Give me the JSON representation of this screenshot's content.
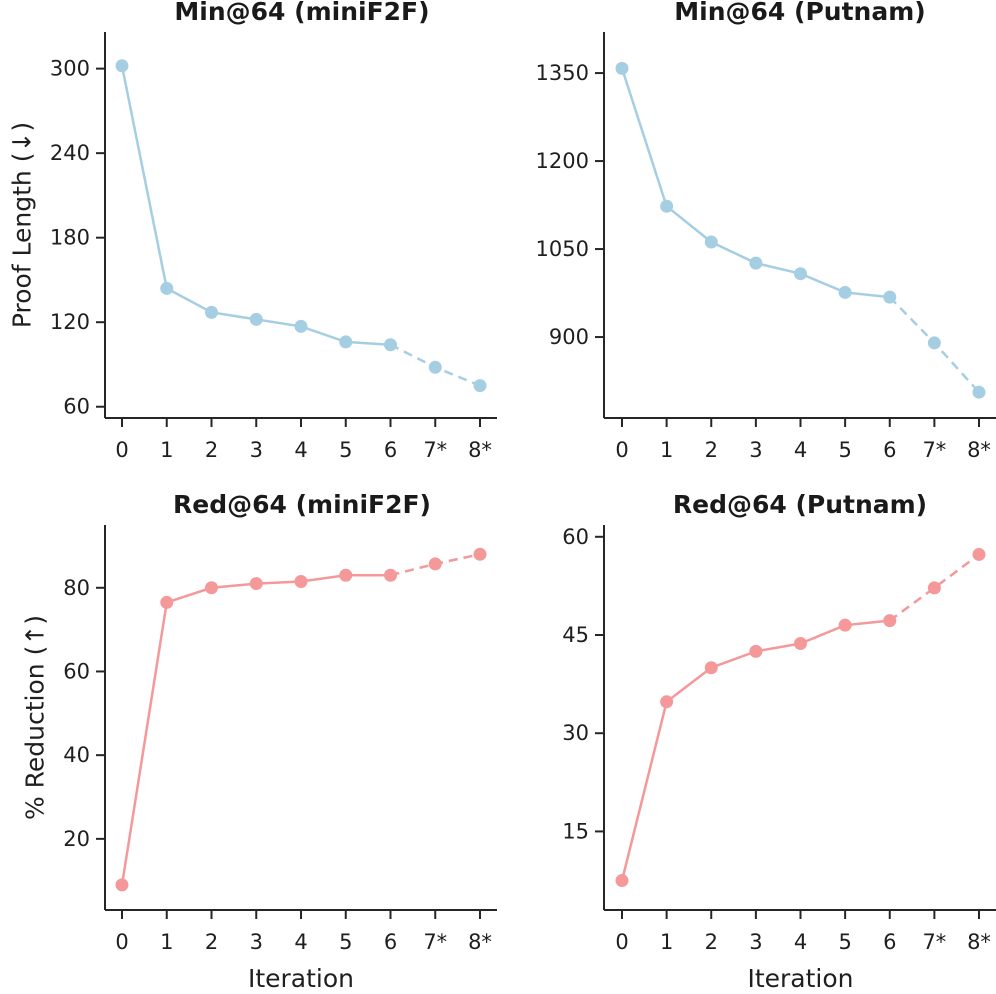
{
  "chart_data": [
    {
      "type": "line",
      "title": "Min@64 (miniF2F)",
      "xlabel": "",
      "ylabel": "Proof Length (↓)",
      "categories": [
        "0",
        "1",
        "2",
        "3",
        "4",
        "5",
        "6",
        "7*",
        "8*"
      ],
      "values": [
        302,
        144,
        127,
        122,
        117,
        106,
        104,
        88,
        75
      ],
      "solid_until_index": 6,
      "yticks": [
        60,
        120,
        180,
        240,
        300
      ],
      "ylim": [
        52,
        326
      ],
      "color": "#a6cee3"
    },
    {
      "type": "line",
      "title": "Min@64 (Putnam)",
      "xlabel": "",
      "ylabel": "",
      "categories": [
        "0",
        "1",
        "2",
        "3",
        "4",
        "5",
        "6",
        "7*",
        "8*"
      ],
      "values": [
        1358,
        1123,
        1062,
        1026,
        1008,
        976,
        968,
        890,
        806
      ],
      "solid_until_index": 6,
      "yticks": [
        900,
        1050,
        1200,
        1350
      ],
      "ylim": [
        762,
        1420
      ],
      "color": "#a6cee3"
    },
    {
      "type": "line",
      "title": "Red@64 (miniF2F)",
      "xlabel": "Iteration",
      "ylabel": "% Reduction (↑)",
      "categories": [
        "0",
        "1",
        "2",
        "3",
        "4",
        "5",
        "6",
        "7*",
        "8*"
      ],
      "values": [
        9,
        76.5,
        80,
        81,
        81.5,
        83,
        83,
        85.7,
        88
      ],
      "solid_until_index": 6,
      "yticks": [
        20,
        40,
        60,
        80
      ],
      "ylim": [
        3,
        95
      ],
      "color": "#f4989a"
    },
    {
      "type": "line",
      "title": "Red@64 (Putnam)",
      "xlabel": "Iteration",
      "ylabel": "",
      "categories": [
        "0",
        "1",
        "2",
        "3",
        "4",
        "5",
        "6",
        "7*",
        "8*"
      ],
      "values": [
        7.5,
        34.8,
        40,
        42.5,
        43.7,
        46.5,
        47.2,
        52.2,
        57.3
      ],
      "solid_until_index": 6,
      "yticks": [
        15,
        30,
        45,
        60
      ],
      "ylim": [
        3,
        61.8
      ],
      "color": "#f4989a"
    }
  ]
}
